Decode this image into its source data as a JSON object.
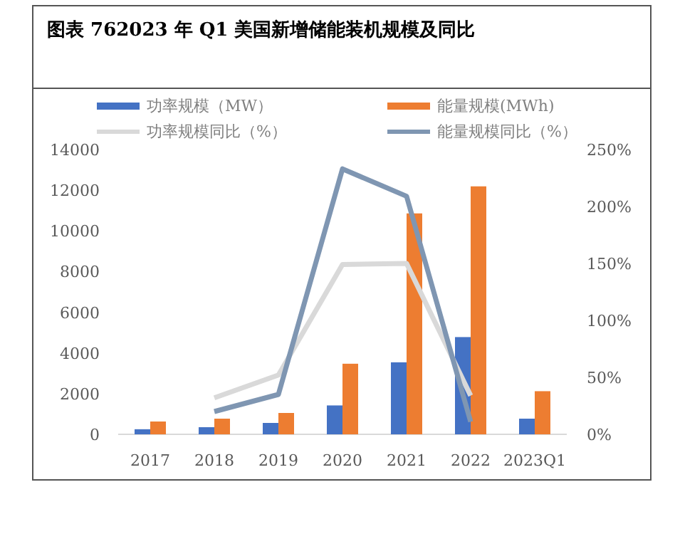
{
  "chart_data": {
    "type": "bar",
    "title": "图表 762023 年 Q1 美国新增储能装机规模及同比",
    "categories": [
      "2017",
      "2018",
      "2019",
      "2020",
      "2021",
      "2022",
      "2023Q1"
    ],
    "series": [
      {
        "name": "功率规模（MW）",
        "color": "#4472c4",
        "values": [
          250,
          350,
          560,
          1420,
          3540,
          4780,
          770
        ]
      },
      {
        "name": "能量规模(MWh)",
        "color": "#ed7d31",
        "values": [
          630,
          770,
          1050,
          3470,
          10860,
          12190,
          2120
        ]
      },
      {
        "name": "功率规模同比（%）",
        "type": "line",
        "axis": "y2",
        "color": "#d9d9d9",
        "values": [
          null,
          32,
          52,
          149,
          150,
          34,
          null
        ]
      },
      {
        "name": "能量规模同比（%）",
        "type": "line",
        "axis": "y2",
        "color": "#7f96b2",
        "values": [
          null,
          20,
          35,
          233,
          209,
          11,
          null
        ]
      }
    ],
    "ylim": [
      0,
      14000
    ],
    "yticks": [
      0,
      2000,
      4000,
      6000,
      8000,
      10000,
      12000,
      14000
    ],
    "y2lim": [
      0,
      250
    ],
    "y2ticks": [
      {
        "value": 0,
        "label": "0%"
      },
      {
        "value": 50,
        "label": "50%"
      },
      {
        "value": 100,
        "label": "100%"
      },
      {
        "value": 150,
        "label": "150%"
      },
      {
        "value": 200,
        "label": "200%"
      },
      {
        "value": 250,
        "label": "250%"
      }
    ],
    "legend": "top",
    "grid": false
  }
}
